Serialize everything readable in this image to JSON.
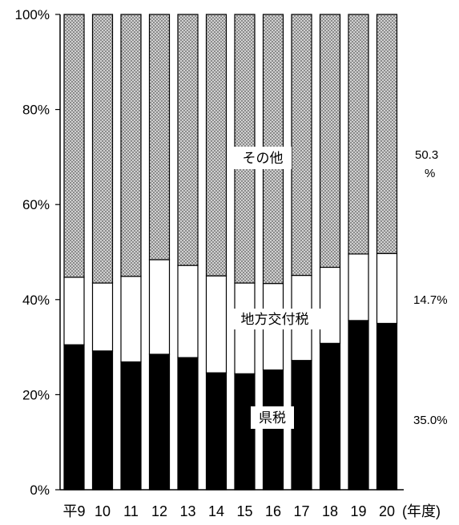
{
  "chart_data": {
    "type": "bar",
    "stacked": true,
    "percent": true,
    "categories": [
      "平9",
      "10",
      "11",
      "12",
      "13",
      "14",
      "15",
      "16",
      "17",
      "18",
      "19",
      "20"
    ],
    "x_unit": "(年度)",
    "series": [
      {
        "name": "県税",
        "values": [
          30.5,
          29.2,
          26.9,
          28.5,
          27.8,
          24.6,
          24.4,
          25.2,
          27.2,
          30.8,
          35.6,
          35.0
        ],
        "fill": "#000000"
      },
      {
        "name": "地方交付税",
        "values": [
          14.2,
          14.3,
          18.0,
          19.9,
          19.4,
          20.4,
          19.1,
          18.2,
          17.9,
          16.0,
          14.0,
          14.7
        ],
        "fill": "#ffffff"
      },
      {
        "name": "その他",
        "values": [
          55.3,
          56.5,
          55.1,
          51.6,
          52.8,
          55.0,
          56.5,
          56.6,
          54.9,
          53.2,
          50.4,
          50.3
        ],
        "fill": "crosshatch"
      }
    ],
    "ylim": [
      0,
      100
    ],
    "yticks": [
      "0%",
      "20%",
      "40%",
      "60%",
      "80%",
      "100%"
    ],
    "side_labels": [
      "50.3",
      "%",
      "14.7%",
      "35.0%"
    ],
    "grid": false,
    "legend": "inline"
  }
}
